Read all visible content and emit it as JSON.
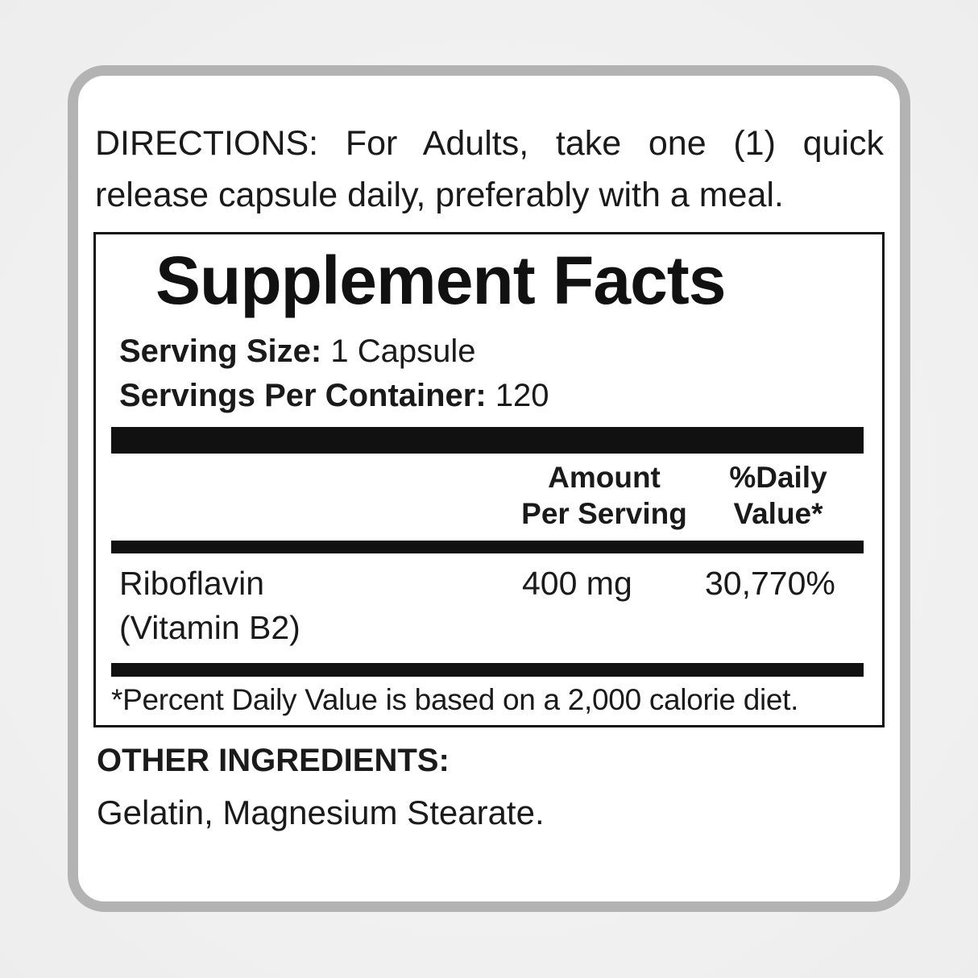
{
  "directions": "DIRECTIONS: For Adults, take one (1) quick release capsule daily, preferably with a meal.",
  "facts": {
    "title": "Supplement Facts",
    "serving_size_label": "Serving Size:",
    "serving_size_value": "1 Capsule",
    "servings_per_container_label": "Servings Per Container:",
    "servings_per_container_value": "120",
    "columns": {
      "amount_line1": "Amount",
      "amount_line2": "Per Serving",
      "dv_line1": "%Daily",
      "dv_line2": "Value*"
    },
    "rows": [
      {
        "name_line1": "Riboflavin",
        "name_line2": "(Vitamin B2)",
        "amount": "400 mg",
        "dv": "30,770%"
      }
    ],
    "footnote": "*Percent Daily Value is based on a 2,000 calorie diet."
  },
  "other_ingredients": {
    "label": "OTHER INGREDIENTS:",
    "value": "Gelatin, Magnesium Stearate."
  }
}
